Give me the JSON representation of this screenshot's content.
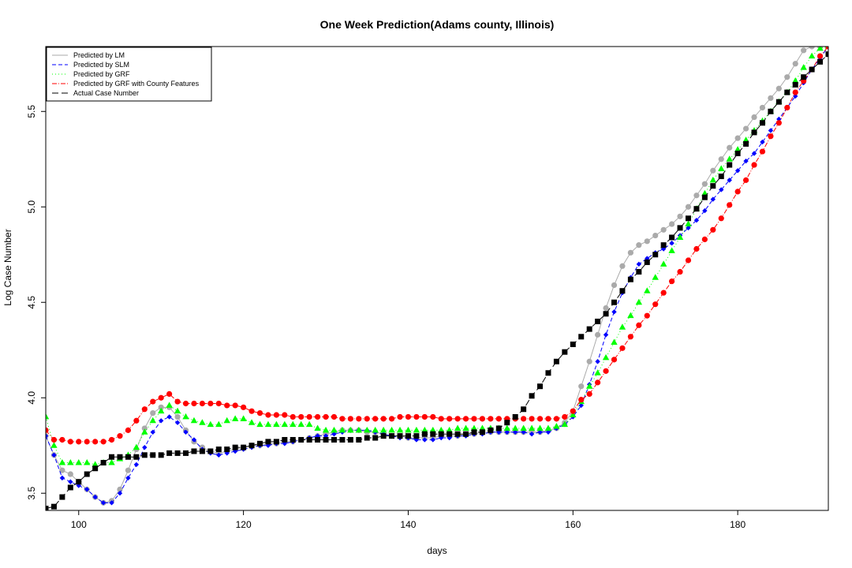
{
  "chart_data": {
    "type": "line",
    "title": "One Week Prediction(Adams county, Illinois)",
    "xlabel": "days",
    "ylabel": "Log Case Number",
    "xlim": [
      96,
      191
    ],
    "ylim": [
      3.41,
      5.84
    ],
    "xticks": [
      100,
      120,
      140,
      160,
      180
    ],
    "yticks": [
      3.5,
      4.0,
      4.5,
      5.0,
      5.5
    ],
    "xtick_labels": [
      "100",
      "120",
      "140",
      "160",
      "180"
    ],
    "ytick_labels": [
      "3.5",
      "4.0",
      "4.5",
      "5.0",
      "5.5"
    ],
    "grid": false,
    "legend_position": "top-left",
    "x": [
      96,
      97,
      98,
      99,
      100,
      101,
      102,
      103,
      104,
      105,
      106,
      107,
      108,
      109,
      110,
      111,
      112,
      113,
      114,
      115,
      116,
      117,
      118,
      119,
      120,
      121,
      122,
      123,
      124,
      125,
      126,
      127,
      128,
      129,
      130,
      131,
      132,
      133,
      134,
      135,
      136,
      137,
      138,
      139,
      140,
      141,
      142,
      143,
      144,
      145,
      146,
      147,
      148,
      149,
      150,
      151,
      152,
      153,
      154,
      155,
      156,
      157,
      158,
      159,
      160,
      161,
      162,
      163,
      164,
      165,
      166,
      167,
      168,
      169,
      170,
      171,
      172,
      173,
      174,
      175,
      176,
      177,
      178,
      179,
      180,
      181,
      182,
      183,
      184,
      185,
      186,
      187,
      188,
      189,
      190,
      191
    ],
    "series": [
      {
        "name": "Predicted by LM",
        "color": "#aaaaaa",
        "marker": "circle",
        "dash": "",
        "values": [
          3.8,
          3.7,
          3.62,
          3.6,
          3.56,
          3.52,
          3.48,
          3.45,
          3.46,
          3.52,
          3.62,
          3.73,
          3.84,
          3.92,
          3.95,
          3.95,
          3.9,
          3.83,
          3.77,
          3.74,
          3.72,
          3.71,
          3.72,
          3.73,
          3.74,
          3.75,
          3.75,
          3.76,
          3.76,
          3.77,
          3.77,
          3.78,
          3.79,
          3.8,
          3.81,
          3.82,
          3.83,
          3.83,
          3.83,
          3.82,
          3.82,
          3.81,
          3.8,
          3.8,
          3.79,
          3.79,
          3.79,
          3.79,
          3.8,
          3.8,
          3.8,
          3.81,
          3.81,
          3.82,
          3.82,
          3.82,
          3.82,
          3.82,
          3.82,
          3.82,
          3.82,
          3.83,
          3.84,
          3.87,
          3.93,
          4.06,
          4.19,
          4.33,
          4.47,
          4.59,
          4.69,
          4.76,
          4.8,
          4.82,
          4.85,
          4.88,
          4.91,
          4.95,
          5.0,
          5.06,
          5.12,
          5.19,
          5.25,
          5.31,
          5.36,
          5.41,
          5.47,
          5.52,
          5.57,
          5.62,
          5.68,
          5.75,
          5.82,
          5.84,
          5.84,
          5.84
        ]
      },
      {
        "name": "Predicted by SLM",
        "color": "#0000ff",
        "marker": "diamond",
        "dash": "5,3",
        "values": [
          3.8,
          3.7,
          3.58,
          3.56,
          3.54,
          3.52,
          3.48,
          3.45,
          3.45,
          3.5,
          3.58,
          3.65,
          3.74,
          3.82,
          3.88,
          3.9,
          3.87,
          3.82,
          3.78,
          3.73,
          3.71,
          3.7,
          3.71,
          3.72,
          3.73,
          3.74,
          3.75,
          3.75,
          3.76,
          3.76,
          3.77,
          3.78,
          3.79,
          3.8,
          3.8,
          3.81,
          3.82,
          3.83,
          3.83,
          3.83,
          3.82,
          3.81,
          3.8,
          3.79,
          3.79,
          3.78,
          3.78,
          3.78,
          3.79,
          3.79,
          3.8,
          3.8,
          3.81,
          3.81,
          3.82,
          3.82,
          3.82,
          3.82,
          3.82,
          3.81,
          3.82,
          3.82,
          3.84,
          3.86,
          3.9,
          3.96,
          4.07,
          4.19,
          4.33,
          4.45,
          4.55,
          4.63,
          4.7,
          4.73,
          4.76,
          4.78,
          4.81,
          4.85,
          4.89,
          4.93,
          4.98,
          5.04,
          5.09,
          5.14,
          5.19,
          5.24,
          5.28,
          5.34,
          5.4,
          5.46,
          5.52,
          5.58,
          5.65,
          5.72,
          5.78,
          5.84
        ]
      },
      {
        "name": "Predicted by GRF",
        "color": "#00ff00",
        "marker": "triangle",
        "dash": "1,3",
        "values": [
          3.9,
          3.75,
          3.66,
          3.66,
          3.66,
          3.66,
          3.65,
          3.66,
          3.66,
          3.68,
          3.7,
          3.74,
          3.82,
          3.88,
          3.93,
          3.96,
          3.93,
          3.9,
          3.88,
          3.87,
          3.86,
          3.86,
          3.88,
          3.89,
          3.89,
          3.87,
          3.86,
          3.86,
          3.86,
          3.86,
          3.86,
          3.86,
          3.86,
          3.84,
          3.83,
          3.83,
          3.83,
          3.83,
          3.83,
          3.83,
          3.83,
          3.83,
          3.83,
          3.83,
          3.83,
          3.83,
          3.83,
          3.83,
          3.83,
          3.83,
          3.84,
          3.84,
          3.84,
          3.84,
          3.84,
          3.84,
          3.84,
          3.84,
          3.84,
          3.84,
          3.84,
          3.84,
          3.85,
          3.86,
          3.91,
          3.98,
          4.06,
          4.13,
          4.21,
          4.29,
          4.37,
          4.43,
          4.5,
          4.56,
          4.63,
          4.7,
          4.77,
          4.84,
          4.91,
          4.99,
          5.07,
          5.14,
          5.2,
          5.25,
          5.3,
          5.35,
          5.4,
          5.45,
          5.5,
          5.55,
          5.6,
          5.66,
          5.73,
          5.79,
          5.83,
          5.84
        ]
      },
      {
        "name": "Predicted by GRF with County Features",
        "color": "#ff0000",
        "marker": "circle",
        "dash": "6,2,1,2",
        "values": [
          3.83,
          3.78,
          3.78,
          3.77,
          3.77,
          3.77,
          3.77,
          3.77,
          3.78,
          3.8,
          3.83,
          3.88,
          3.94,
          3.98,
          4.0,
          4.02,
          3.98,
          3.97,
          3.97,
          3.97,
          3.97,
          3.97,
          3.96,
          3.96,
          3.95,
          3.93,
          3.92,
          3.91,
          3.91,
          3.91,
          3.9,
          3.9,
          3.9,
          3.9,
          3.9,
          3.9,
          3.89,
          3.89,
          3.89,
          3.89,
          3.89,
          3.89,
          3.89,
          3.9,
          3.9,
          3.9,
          3.9,
          3.9,
          3.89,
          3.89,
          3.89,
          3.89,
          3.89,
          3.89,
          3.89,
          3.89,
          3.89,
          3.89,
          3.89,
          3.89,
          3.89,
          3.89,
          3.89,
          3.9,
          3.93,
          3.99,
          4.02,
          4.08,
          4.14,
          4.2,
          4.26,
          4.32,
          4.38,
          4.43,
          4.49,
          4.55,
          4.61,
          4.66,
          4.72,
          4.78,
          4.83,
          4.88,
          4.94,
          5.01,
          5.08,
          5.14,
          5.22,
          5.29,
          5.37,
          5.44,
          5.52,
          5.6,
          5.66,
          5.72,
          5.79,
          5.84
        ]
      },
      {
        "name": "Actual Case Number",
        "color": "#000000",
        "marker": "square",
        "dash": "8,4",
        "values": [
          3.42,
          3.43,
          3.48,
          3.53,
          3.56,
          3.6,
          3.63,
          3.66,
          3.69,
          3.69,
          3.69,
          3.69,
          3.7,
          3.7,
          3.7,
          3.71,
          3.71,
          3.71,
          3.72,
          3.72,
          3.72,
          3.73,
          3.73,
          3.74,
          3.74,
          3.75,
          3.76,
          3.77,
          3.77,
          3.78,
          3.78,
          3.78,
          3.78,
          3.78,
          3.78,
          3.78,
          3.78,
          3.78,
          3.78,
          3.79,
          3.79,
          3.8,
          3.8,
          3.8,
          3.8,
          3.8,
          3.81,
          3.81,
          3.81,
          3.81,
          3.81,
          3.81,
          3.82,
          3.82,
          3.83,
          3.84,
          3.87,
          3.9,
          3.94,
          4.01,
          4.06,
          4.13,
          4.19,
          4.24,
          4.28,
          4.32,
          4.36,
          4.4,
          4.44,
          4.5,
          4.56,
          4.62,
          4.66,
          4.71,
          4.75,
          4.8,
          4.84,
          4.89,
          4.94,
          4.99,
          5.05,
          5.11,
          5.16,
          5.22,
          5.28,
          5.33,
          5.39,
          5.44,
          5.5,
          5.55,
          5.6,
          5.64,
          5.68,
          5.72,
          5.76,
          5.8
        ]
      }
    ]
  }
}
